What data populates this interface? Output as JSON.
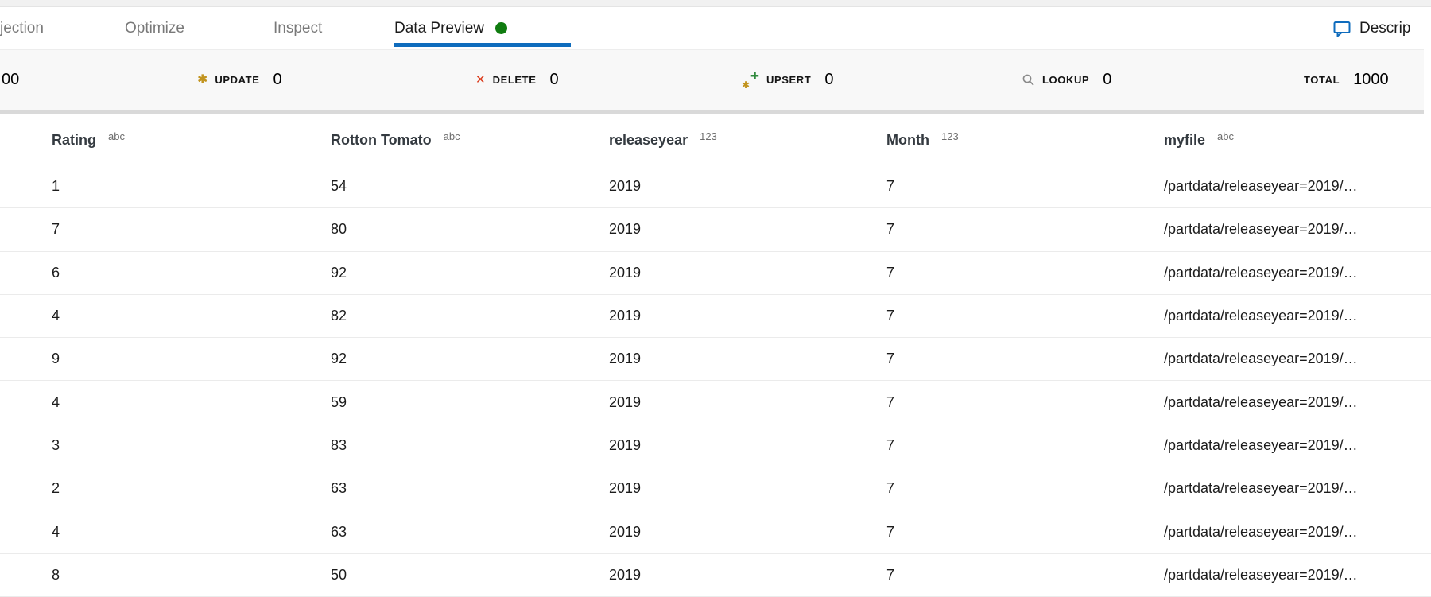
{
  "tabbar": {
    "projection": {
      "label": "jection"
    },
    "optimize": {
      "label": "Optimize"
    },
    "inspect": {
      "label": "Inspect"
    },
    "data_preview": {
      "label": "Data Preview"
    },
    "description": {
      "label": "Descrip"
    }
  },
  "stats": {
    "insert": {
      "value": "00"
    },
    "update": {
      "label": "UPDATE",
      "value": "0"
    },
    "delete": {
      "label": "DELETE",
      "value": "0"
    },
    "upsert": {
      "label": "UPSERT",
      "value": "0"
    },
    "lookup": {
      "label": "LOOKUP",
      "value": "0"
    },
    "total": {
      "label": "TOTAL",
      "value": "1000"
    }
  },
  "table": {
    "columns": [
      {
        "name": "Rating",
        "type": "abc"
      },
      {
        "name": "Rotton Tomato",
        "type": "abc"
      },
      {
        "name": "releaseyear",
        "type": "123"
      },
      {
        "name": "Month",
        "type": "123"
      },
      {
        "name": "myfile",
        "type": "abc"
      }
    ],
    "rows": [
      [
        "1",
        "54",
        "2019",
        "7",
        "/partdata/releaseyear=2019/…"
      ],
      [
        "7",
        "80",
        "2019",
        "7",
        "/partdata/releaseyear=2019/…"
      ],
      [
        "6",
        "92",
        "2019",
        "7",
        "/partdata/releaseyear=2019/…"
      ],
      [
        "4",
        "82",
        "2019",
        "7",
        "/partdata/releaseyear=2019/…"
      ],
      [
        "9",
        "92",
        "2019",
        "7",
        "/partdata/releaseyear=2019/…"
      ],
      [
        "4",
        "59",
        "2019",
        "7",
        "/partdata/releaseyear=2019/…"
      ],
      [
        "3",
        "83",
        "2019",
        "7",
        "/partdata/releaseyear=2019/…"
      ],
      [
        "2",
        "63",
        "2019",
        "7",
        "/partdata/releaseyear=2019/…"
      ],
      [
        "4",
        "63",
        "2019",
        "7",
        "/partdata/releaseyear=2019/…"
      ],
      [
        "8",
        "50",
        "2019",
        "7",
        "/partdata/releaseyear=2019/…"
      ]
    ]
  },
  "colors": {
    "accent_blue": "#0f6cbd",
    "status_green": "#107c10",
    "update_gold": "#c2941f",
    "delete_red": "#dc3d1e",
    "upsert_green": "#2f8a3d",
    "lookup_gray": "#8a8a8a"
  }
}
